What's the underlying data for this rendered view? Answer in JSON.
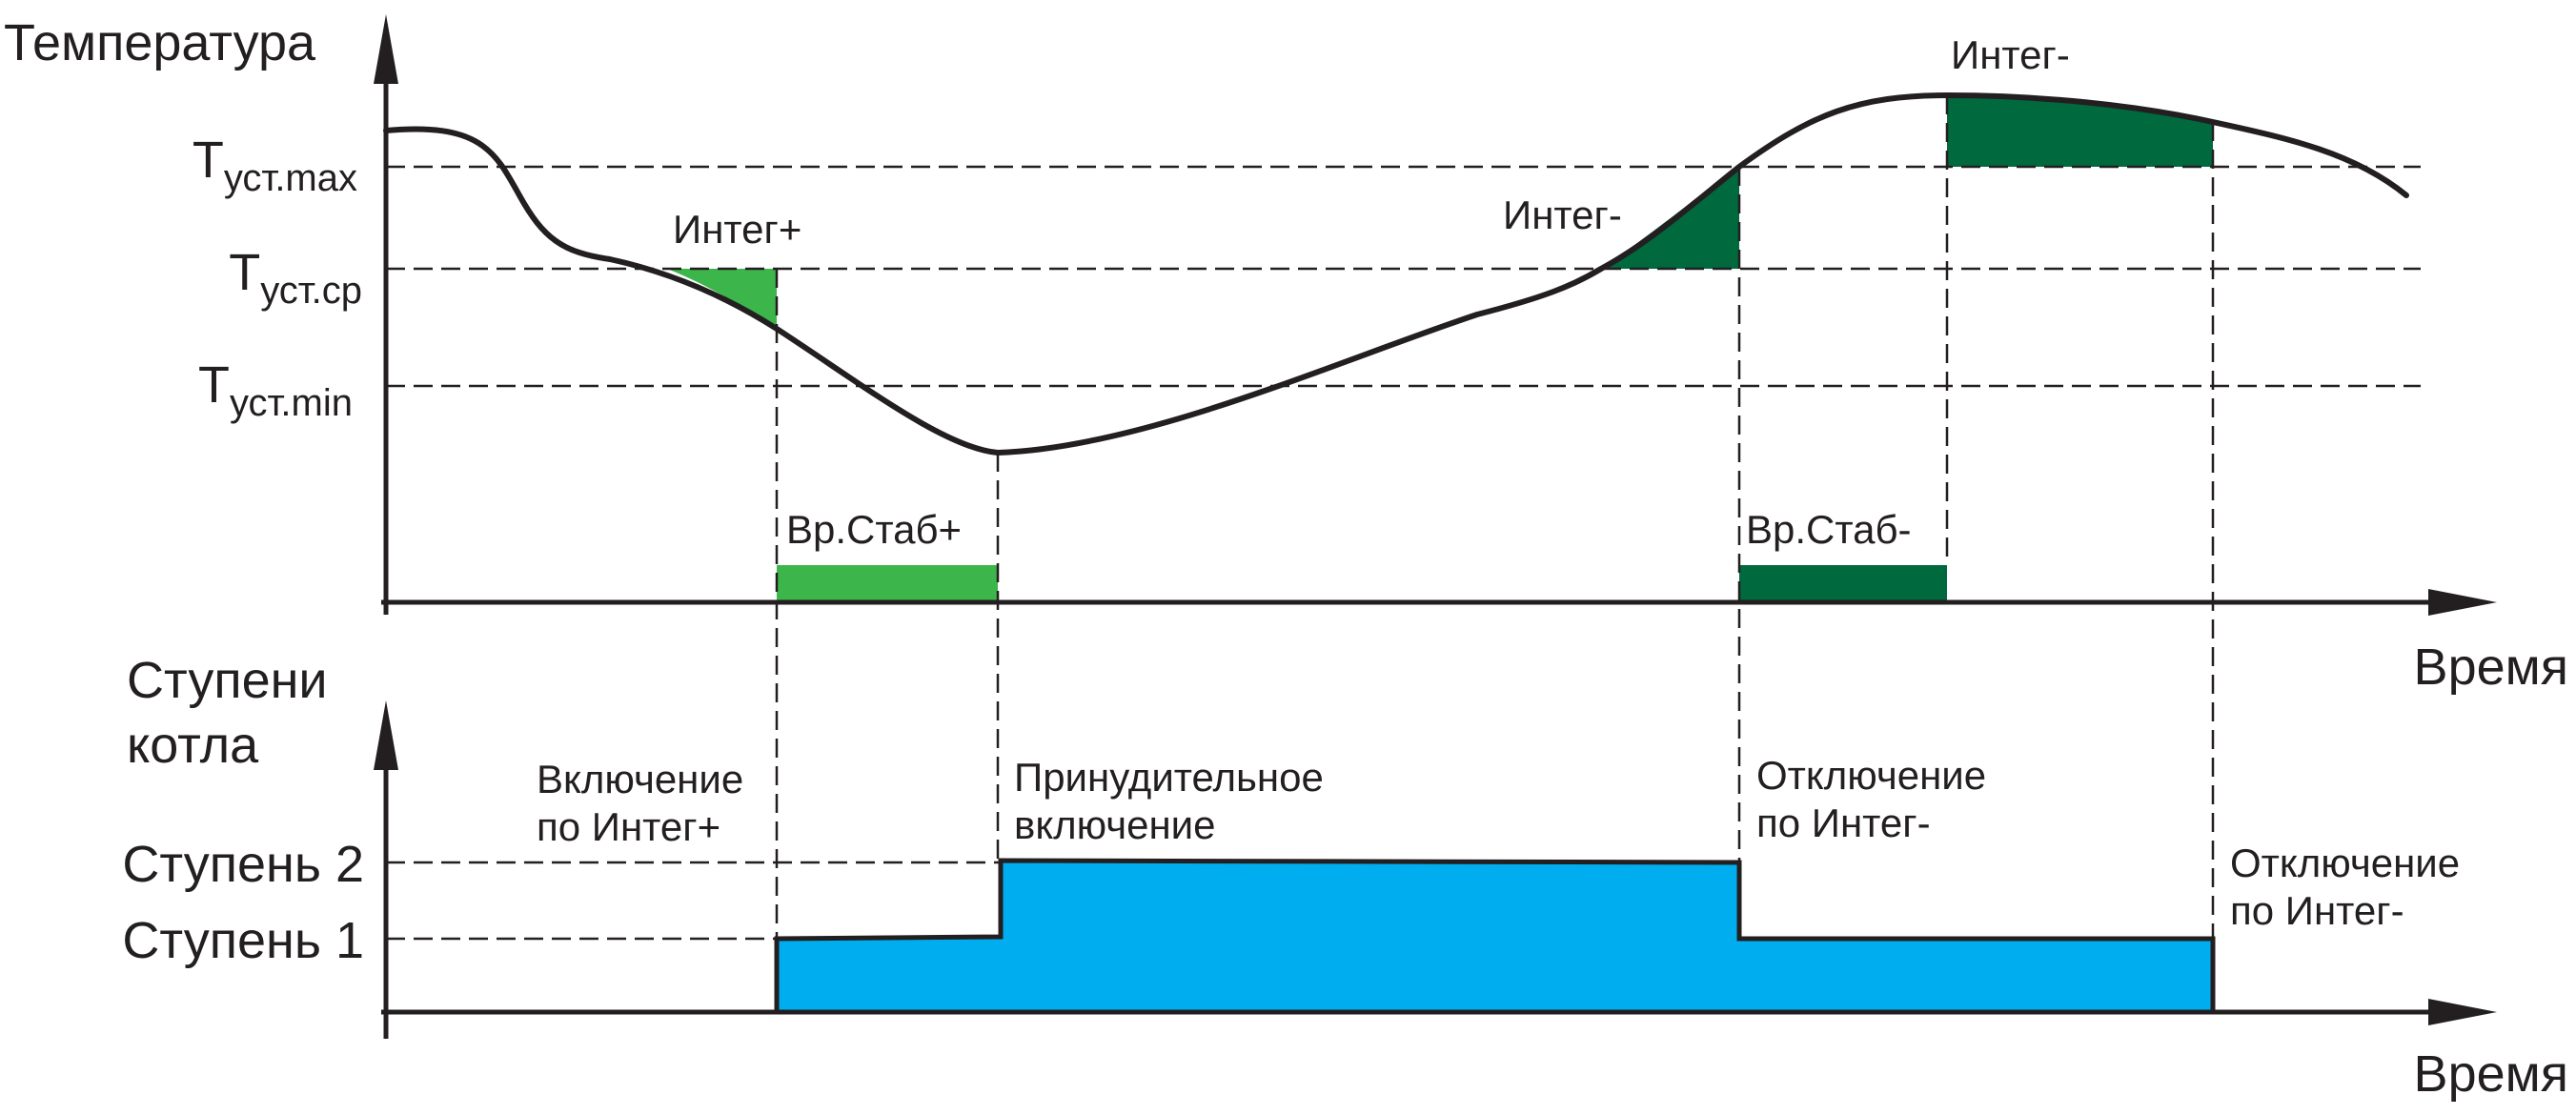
{
  "top_chart": {
    "y_axis_title": "Температура",
    "x_axis_title": "Время",
    "levels": [
      {
        "id": "max",
        "main": "T",
        "sub": "уст.max"
      },
      {
        "id": "cp",
        "main": "T",
        "sub": "уст.ср"
      },
      {
        "id": "min",
        "main": "T",
        "sub": "уст.min"
      }
    ],
    "area_labels": {
      "integ_plus": "Интег+",
      "integ_minus_1": "Интег-",
      "integ_minus_2": "Интег-"
    },
    "stab_labels": {
      "plus": "Вр.Стаб+",
      "minus": "Вр.Стаб-"
    }
  },
  "bottom_chart": {
    "y_axis_title_line1": "Ступени",
    "y_axis_title_line2": "котла",
    "x_axis_title": "Время",
    "stage_labels": {
      "stage2": "Ступень 2",
      "stage1": "Ступень 1"
    },
    "annotations": {
      "on_integ": [
        "Включение",
        "по Интег+"
      ],
      "forced": [
        "Принудительное",
        "включение"
      ],
      "off_integ_1": [
        "Отключение",
        "по Интег-"
      ],
      "off_integ_2": [
        "Отключение",
        "по Интег-"
      ]
    }
  },
  "colors": {
    "light_green": "#3cb54a",
    "dark_green": "#00693e",
    "stage_fill": "#00aeef",
    "line": "#231f20"
  }
}
